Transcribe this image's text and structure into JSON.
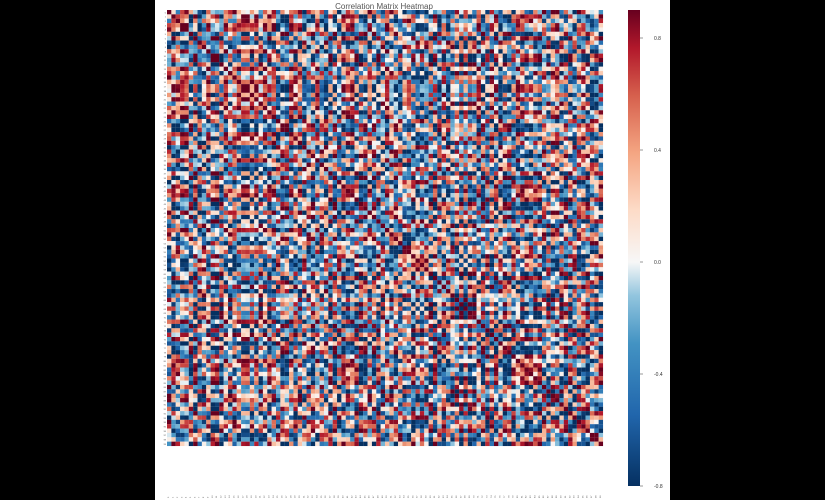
{
  "chart_data": {
    "type": "heatmap",
    "title": "Correlation Matrix Heatmap",
    "size": 100,
    "seed": 7,
    "colorscale": "RdBu_r",
    "vmin": -0.8,
    "vmax": 0.9,
    "colorbar_ticks": [
      {
        "value": 0.8,
        "label": "0.8"
      },
      {
        "value": 0.4,
        "label": "0.4"
      },
      {
        "value": 0.0,
        "label": "0.0"
      },
      {
        "value": -0.4,
        "label": "-0.4"
      },
      {
        "value": -0.8,
        "label": "-0.8"
      }
    ],
    "colors": {
      "low": "#053061",
      "mid": "#f7f7f7",
      "high": "#67001f"
    },
    "xlabel": "",
    "ylabel": ""
  }
}
